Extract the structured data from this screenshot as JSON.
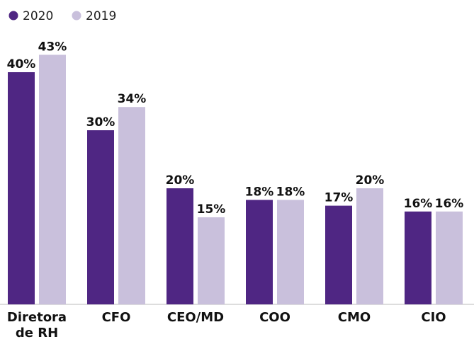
{
  "chart_data": {
    "type": "bar",
    "categories": [
      "Diretora de RH",
      "CFO",
      "CEO/MD",
      "COO",
      "CMO",
      "CIO"
    ],
    "series": [
      {
        "name": "2020",
        "color": "#4f2683",
        "values": [
          40,
          30,
          20,
          18,
          17,
          16
        ],
        "value_labels": [
          "40%",
          "30%",
          "20%",
          "18%",
          "17%",
          "16%"
        ]
      },
      {
        "name": "2019",
        "color": "#c9c0dc",
        "values": [
          43,
          34,
          15,
          18,
          20,
          16
        ],
        "value_labels": [
          "43%",
          "34%",
          "15%",
          "18%",
          "20%",
          "16%"
        ]
      }
    ],
    "ylim": [
      0,
      50
    ]
  }
}
